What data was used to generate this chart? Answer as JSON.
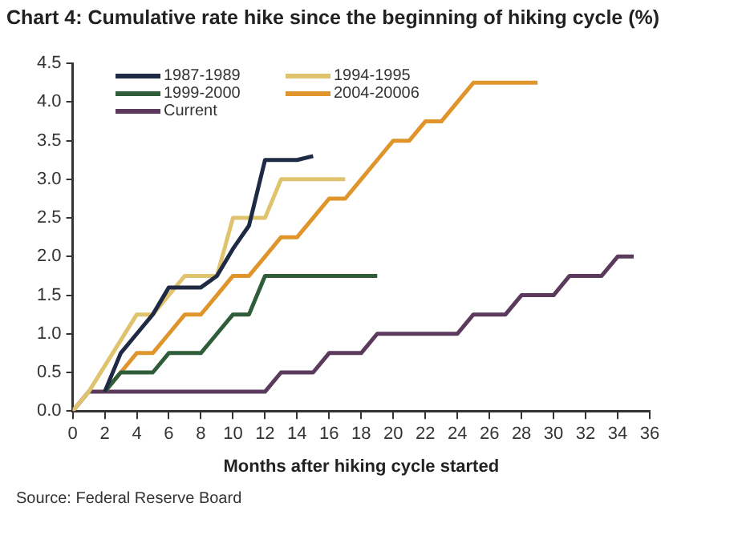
{
  "chart_data": {
    "type": "line",
    "title": "Chart 4: Cumulative rate hike since the beginning of hiking cycle (%)",
    "xlabel": "Months after hiking cycle started",
    "annotations": [
      "Source: Federal Reserve Board"
    ],
    "xlim": [
      0,
      36
    ],
    "xticks": [
      0,
      2,
      4,
      6,
      8,
      10,
      12,
      14,
      16,
      18,
      20,
      22,
      24,
      26,
      28,
      30,
      32,
      34,
      36
    ],
    "ylim": [
      0,
      4.5
    ],
    "yticks": [
      {
        "value": 0,
        "label": "0.0"
      },
      {
        "value": 0.5,
        "label": "0.5"
      },
      {
        "value": 1,
        "label": "1.0"
      },
      {
        "value": 1.5,
        "label": "1.5"
      },
      {
        "value": 2,
        "label": "2.0"
      },
      {
        "value": 2.5,
        "label": "2.5"
      },
      {
        "value": 3,
        "label": "3.0"
      },
      {
        "value": 3.5,
        "label": "3.5"
      },
      {
        "value": 4,
        "label": "4.0"
      },
      {
        "value": 4.5,
        "label": "4.5"
      }
    ],
    "grid": false,
    "legend": "top left",
    "marker": "none",
    "line_style": "solid",
    "series": [
      {
        "name": "1987-1989",
        "color": "#1f2a44",
        "x": [
          2,
          3,
          4,
          5,
          6,
          8,
          9,
          10,
          11,
          12,
          14,
          15
        ],
        "values": [
          0.25,
          0.75,
          1.0,
          1.25,
          1.6,
          1.6,
          1.75,
          2.1,
          2.4,
          3.25,
          3.25,
          3.3
        ]
      },
      {
        "name": "1994-1995",
        "color": "#e0c36e",
        "x": [
          0,
          1,
          4,
          5,
          7,
          9,
          10,
          12,
          13,
          17
        ],
        "values": [
          0,
          0.25,
          1.25,
          1.25,
          1.75,
          1.75,
          2.5,
          2.5,
          3.0,
          3.0
        ]
      },
      {
        "name": "1999-2000",
        "color": "#2f5d3a",
        "x": [
          2,
          3,
          5,
          6,
          8,
          9,
          10,
          11,
          12,
          19
        ],
        "values": [
          0.25,
          0.5,
          0.5,
          0.75,
          0.75,
          1.0,
          1.25,
          1.25,
          1.75,
          1.75
        ]
      },
      {
        "name": "2004-20006",
        "color": "#e0952c",
        "x": [
          2,
          3,
          4,
          5,
          6,
          7,
          8,
          9,
          10,
          11,
          12,
          13,
          14,
          15,
          16,
          17,
          18,
          19,
          20,
          21,
          22,
          23,
          24,
          25,
          29
        ],
        "values": [
          0.25,
          0.5,
          0.75,
          0.75,
          1.0,
          1.25,
          1.25,
          1.5,
          1.75,
          1.75,
          2.0,
          2.25,
          2.25,
          2.5,
          2.75,
          2.75,
          3.0,
          3.25,
          3.5,
          3.5,
          3.75,
          3.75,
          4.0,
          4.25,
          4.25
        ]
      },
      {
        "name": "Current",
        "color": "#5b3a5e",
        "x": [
          0,
          1,
          12,
          13,
          15,
          16,
          18,
          19,
          24,
          25,
          27,
          28,
          30,
          31,
          33,
          34,
          35
        ],
        "values": [
          0,
          0.25,
          0.25,
          0.5,
          0.5,
          0.75,
          0.75,
          1.0,
          1.0,
          1.25,
          1.25,
          1.5,
          1.5,
          1.75,
          1.75,
          2.0,
          2.0
        ]
      }
    ]
  }
}
